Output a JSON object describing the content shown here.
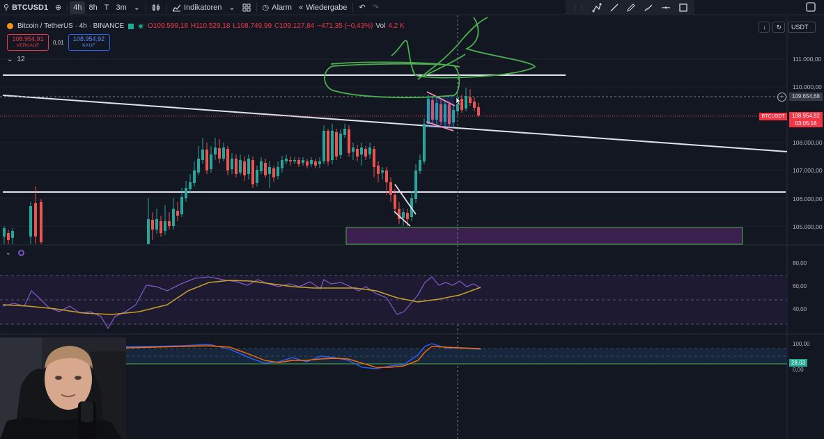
{
  "toolbar": {
    "symbol": "BTCUSD1",
    "intervals": [
      "4h",
      "8h",
      "T",
      "3m"
    ],
    "active_interval": "4h",
    "indicators_label": "Indikatoren",
    "alarm_label": "Alarm",
    "replay_label": "Wiedergabe"
  },
  "legend": {
    "title": "Bitcoin / TetherUS · 4h · BINANCE",
    "open": "O109.599,18",
    "high": "H110.529,18",
    "low": "L108.749,99",
    "close": "C109.127,84",
    "change": "−471,35 (−0,43%)",
    "volume_label": "Vol",
    "volume": "4,2 K"
  },
  "trade": {
    "sell_price": "108.954,91",
    "sell_label": "VERKAUF",
    "spread": "0,01",
    "buy_price": "108.954,92",
    "buy_label": "KAUF"
  },
  "indicator_count": "12",
  "currency": "USDT",
  "price_axis": [
    "111.000,00",
    "110.000,00",
    "108.000,00",
    "107.000,00",
    "106.000,00",
    "105.000,00"
  ],
  "crosshair_price": "109.654,68",
  "current": {
    "symbol_tag": "BTCUSDT",
    "price": "108.954,92",
    "countdown": "03:05:18"
  },
  "rsi_axis": [
    "80,00",
    "60,00",
    "40,00"
  ],
  "stoch_axis": [
    "100,00",
    "0,00"
  ],
  "stoch_value": "28,03",
  "colors": {
    "background": "#131722",
    "up": "#26a69a",
    "down": "#ef5350",
    "sell": "#f23645",
    "buy": "#2962ff",
    "annotation": "#4caf50",
    "rsi": "#7e57c2",
    "rsi_ma": "#c9a227"
  }
}
